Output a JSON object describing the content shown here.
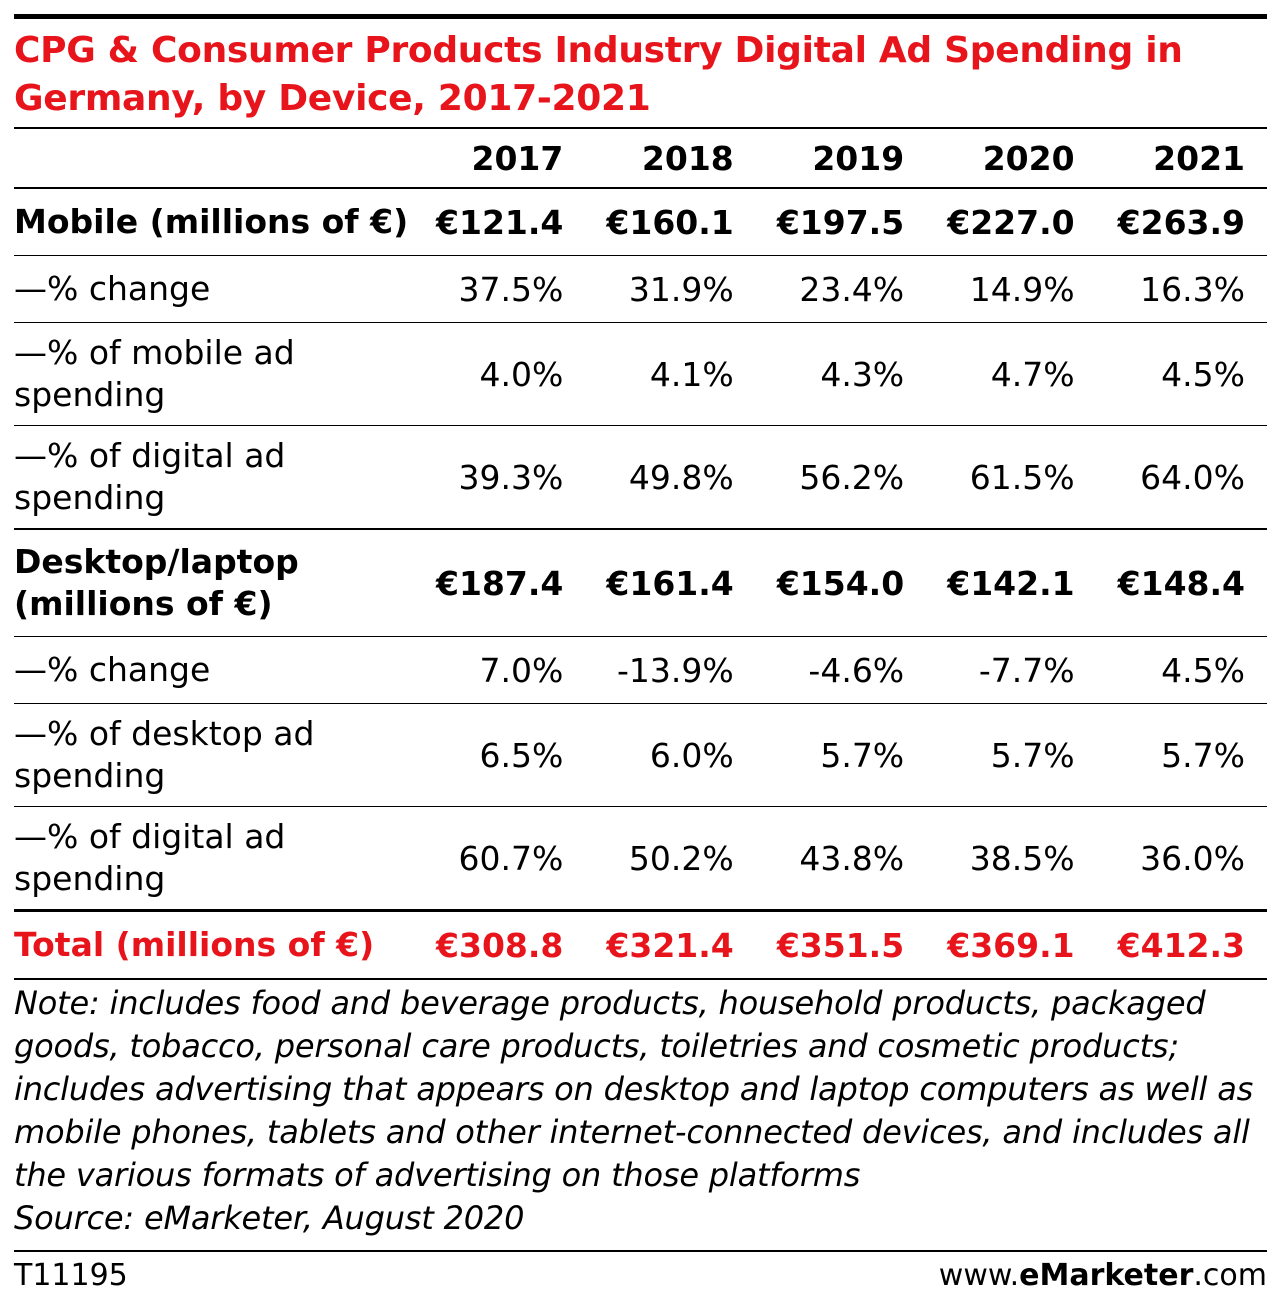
{
  "chart_data": {
    "type": "table",
    "title": "CPG & Consumer Products Industry Digital Ad Spending in Germany, by Device, 2017-2021",
    "columns": [
      "2017",
      "2018",
      "2019",
      "2020",
      "2021"
    ],
    "rows": [
      {
        "label": "Mobile (millions of €)",
        "values": [
          "€121.4",
          "€160.1",
          "€197.5",
          "€227.0",
          "€263.9"
        ]
      },
      {
        "label": "—% change",
        "values": [
          "37.5%",
          "31.9%",
          "23.4%",
          "14.9%",
          "16.3%"
        ]
      },
      {
        "label": "—% of mobile ad spending",
        "values": [
          "4.0%",
          "4.1%",
          "4.3%",
          "4.7%",
          "4.5%"
        ]
      },
      {
        "label": "—% of digital ad spending",
        "values": [
          "39.3%",
          "49.8%",
          "56.2%",
          "61.5%",
          "64.0%"
        ]
      },
      {
        "label": "Desktop/laptop (millions of €)",
        "values": [
          "€187.4",
          "€161.4",
          "€154.0",
          "€142.1",
          "€148.4"
        ]
      },
      {
        "label": "—% change",
        "values": [
          "7.0%",
          "-13.9%",
          "-4.6%",
          "-7.7%",
          "4.5%"
        ]
      },
      {
        "label": "—% of desktop ad spending",
        "values": [
          "6.5%",
          "6.0%",
          "5.7%",
          "5.7%",
          "5.7%"
        ]
      },
      {
        "label": "—% of digital ad spending",
        "values": [
          "60.7%",
          "50.2%",
          "43.8%",
          "38.5%",
          "36.0%"
        ]
      },
      {
        "label": "Total (millions of €)",
        "values": [
          "€308.8",
          "€321.4",
          "€351.5",
          "€369.1",
          "€412.3"
        ]
      }
    ],
    "note": "Note: includes food and beverage products, household products, packaged goods, tobacco, personal care products, toiletries and cosmetic products; includes advertising that appears on desktop and laptop computers as well as mobile phones, tablets and other internet-connected devices, and includes all the various formats of advertising on those platforms",
    "source": "Source: eMarketer, August 2020"
  },
  "footer": {
    "id": "T11195",
    "brand_prefix": "www.",
    "brand_bold": "eMarketer",
    "brand_suffix": ".com"
  },
  "colors": {
    "accent": "#e8141b",
    "text": "#000000"
  }
}
